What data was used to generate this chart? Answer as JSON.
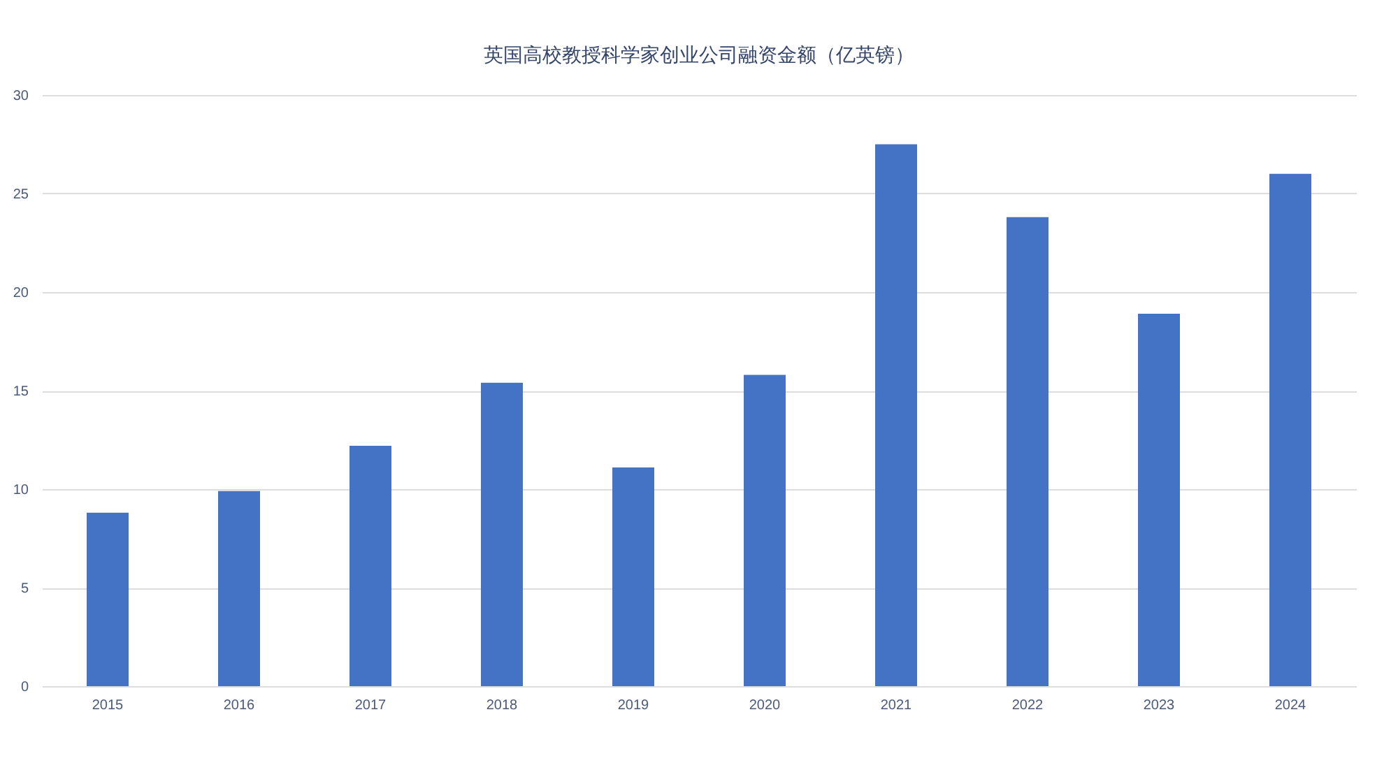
{
  "chart_data": {
    "type": "bar",
    "title": "英国高校教授科学家创业公司融资金额（亿英镑）",
    "categories": [
      "2015",
      "2016",
      "2017",
      "2018",
      "2019",
      "2020",
      "2021",
      "2022",
      "2023",
      "2024"
    ],
    "values": [
      8.8,
      9.9,
      12.2,
      15.4,
      11.1,
      15.8,
      27.5,
      23.8,
      18.9,
      26.0
    ],
    "color": "#4472c4",
    "ylim": [
      0,
      30
    ],
    "yticks": [
      0,
      5,
      10,
      15,
      20,
      25,
      30
    ],
    "grid": "y"
  }
}
